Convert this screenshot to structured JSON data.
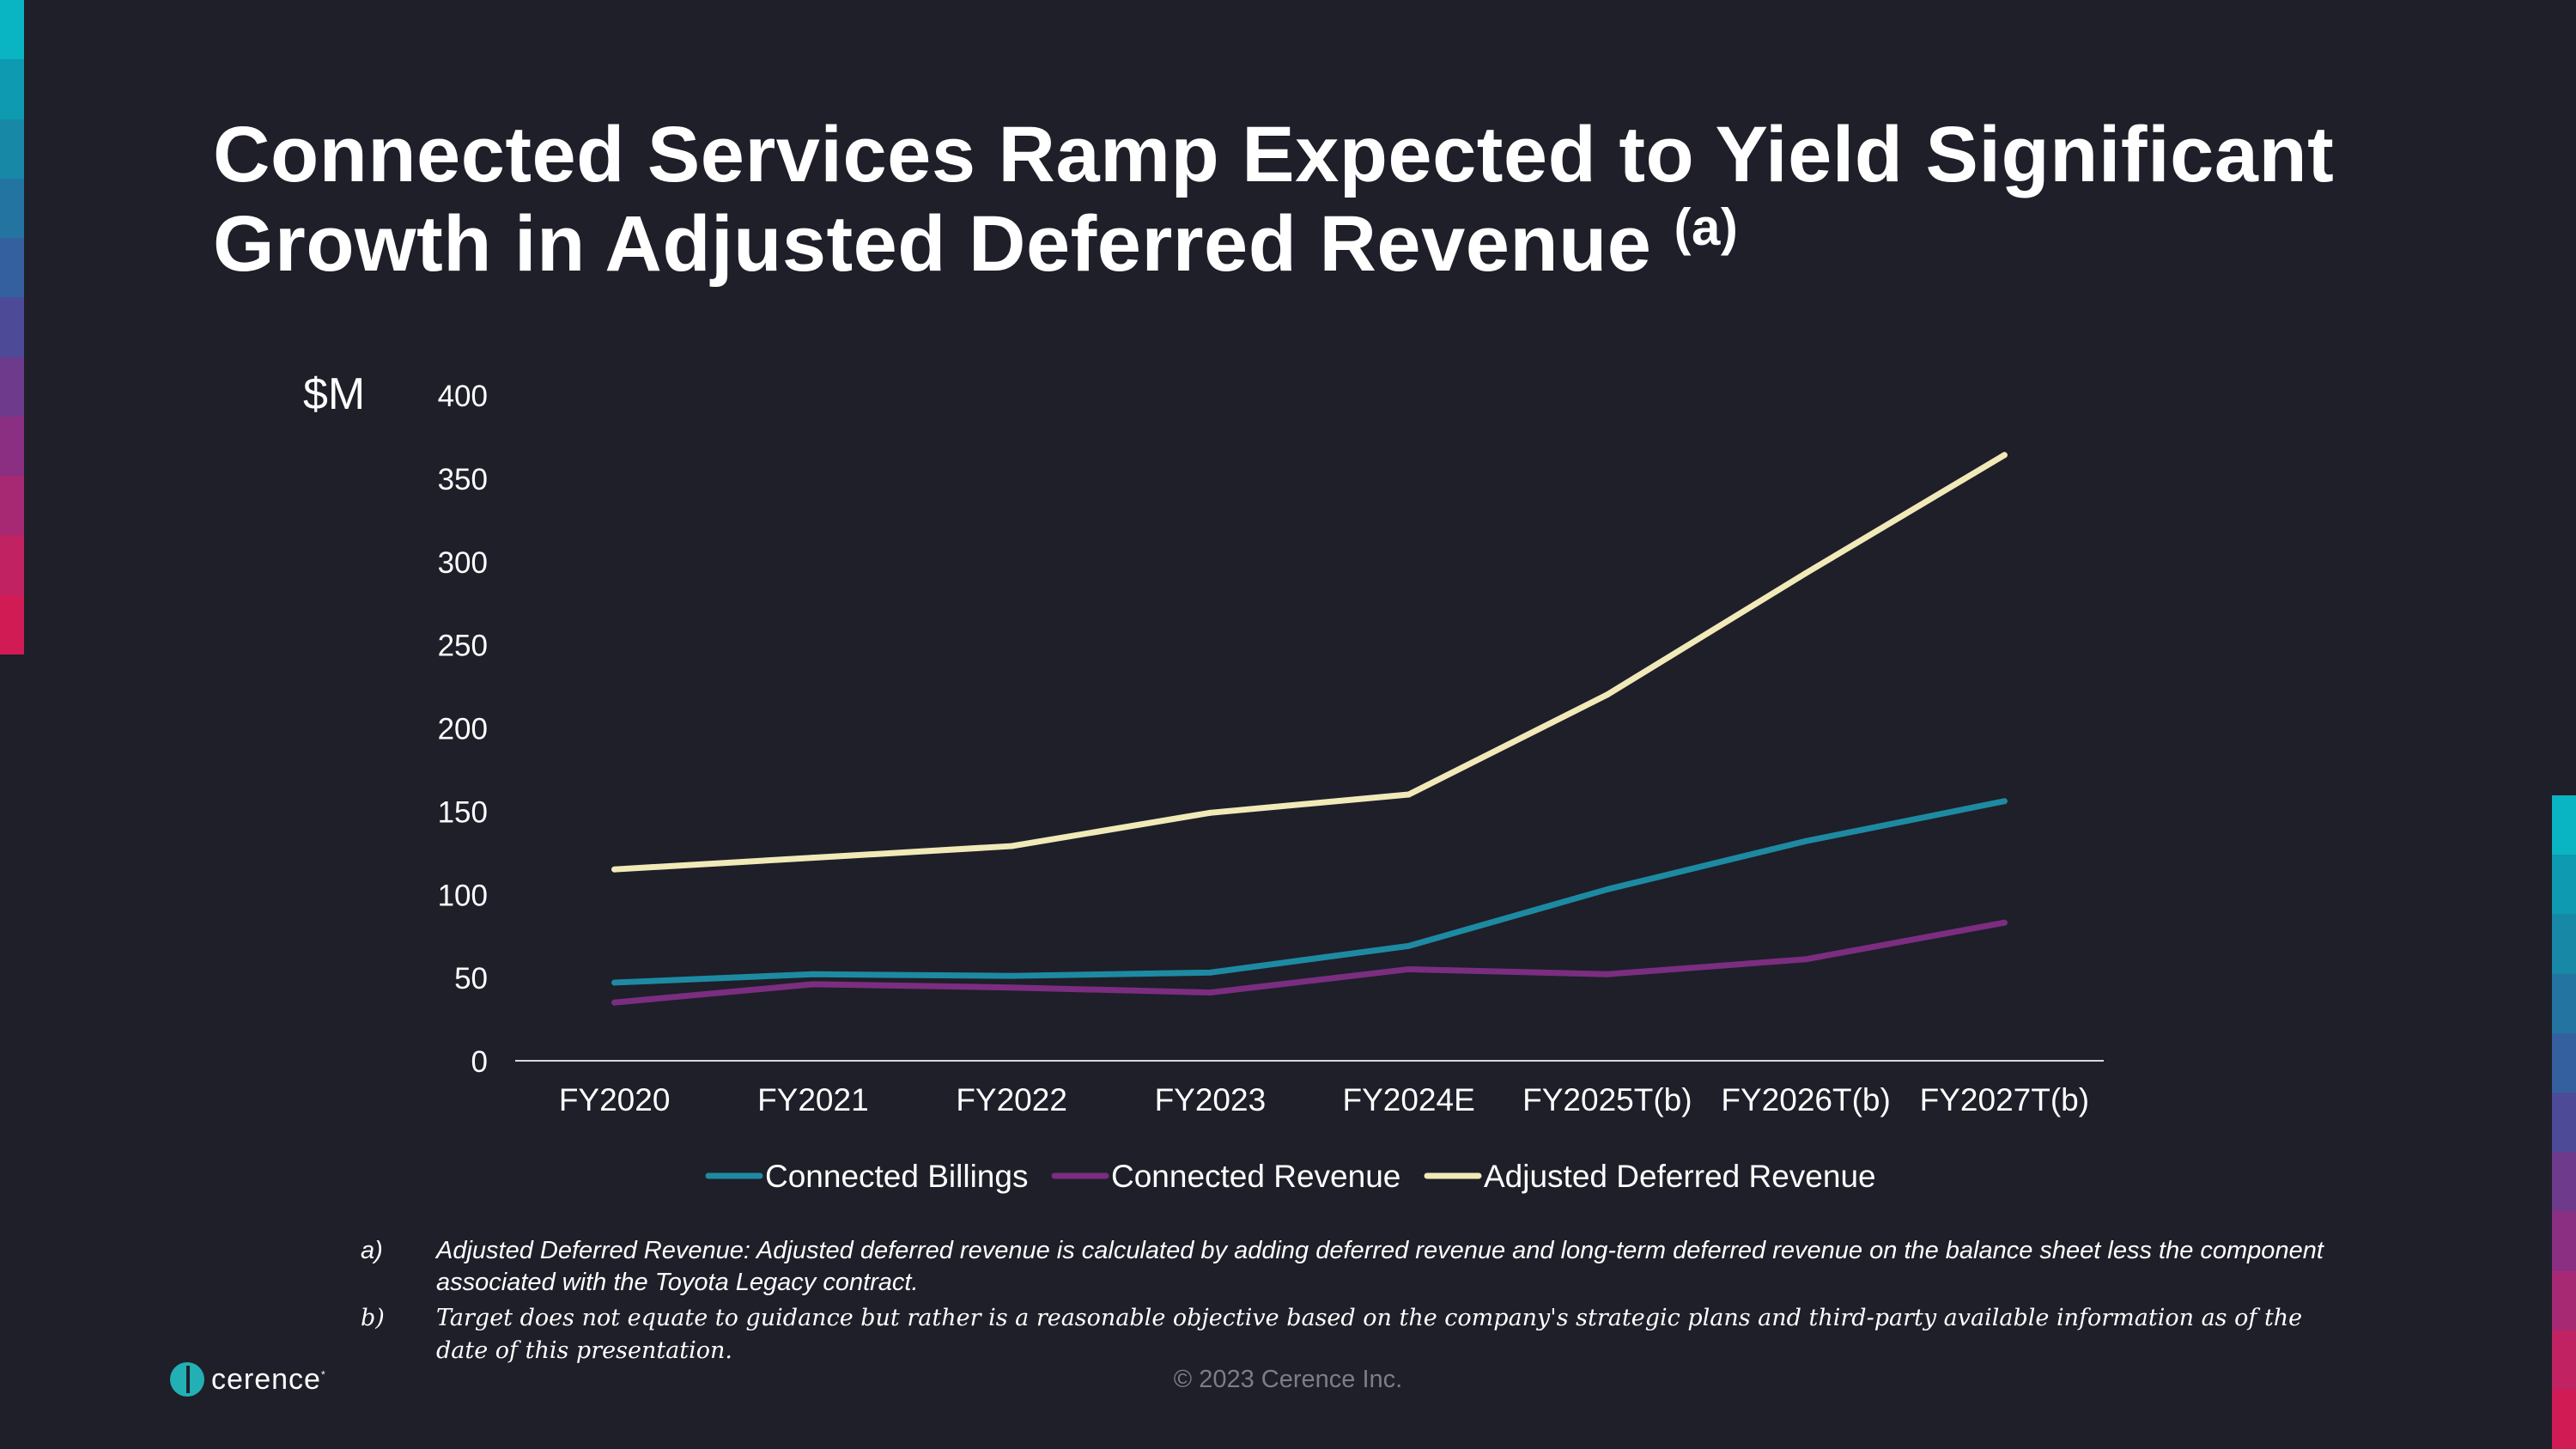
{
  "slide": {
    "title_line1": "Connected Services Ramp Expected to Yield Significant",
    "title_line2": "Growth in Adjusted Deferred Revenue",
    "title_superscript": "(a)"
  },
  "chart_data": {
    "type": "line",
    "title": "",
    "ylabel": "$M",
    "xlabel": "",
    "ylim": [
      0,
      400
    ],
    "yticks": [
      0,
      50,
      100,
      150,
      200,
      250,
      300,
      350,
      400
    ],
    "categories": [
      "FY2020",
      "FY2021",
      "FY2022",
      "FY2023",
      "FY2024E",
      "FY2025T(b)",
      "FY2026T(b)",
      "FY2027T(b)"
    ],
    "grid": false,
    "legend_position": "bottom",
    "series": [
      {
        "name": "Connected Billings",
        "color": "#1d8aa2",
        "values": [
          47,
          52,
          51,
          53,
          69,
          103,
          132,
          156
        ]
      },
      {
        "name": "Connected Revenue",
        "color": "#7b2d80",
        "values": [
          35,
          46,
          44,
          41,
          55,
          52,
          61,
          83
        ]
      },
      {
        "name": "Adjusted Deferred Revenue",
        "color": "#f1e9b8",
        "values": [
          115,
          122,
          129,
          149,
          160,
          220,
          293,
          364
        ]
      }
    ]
  },
  "footnotes": [
    {
      "label": "a)",
      "text": "Adjusted Deferred Revenue: Adjusted deferred revenue is calculated by adding deferred revenue and long-term deferred revenue on the balance sheet less the component associated with the Toyota Legacy contract."
    },
    {
      "label": "b)",
      "text": "Target does not equate to guidance but rather is a reasonable objective based on the company's strategic plans and third-party available information as of the date of this presentation."
    }
  ],
  "logo": {
    "text": "cerence",
    "trademark": "*"
  },
  "copyright": "© 2023 Cerence Inc.",
  "colors": {
    "background": "#1e1f29",
    "accent_gradient": [
      "#0ab5c3",
      "#0e9ab0",
      "#1789a6",
      "#2474a2",
      "#3460a0",
      "#4d4b97",
      "#6e3a8c",
      "#8a2f82",
      "#a82973",
      "#c02262",
      "#d11b55"
    ]
  }
}
